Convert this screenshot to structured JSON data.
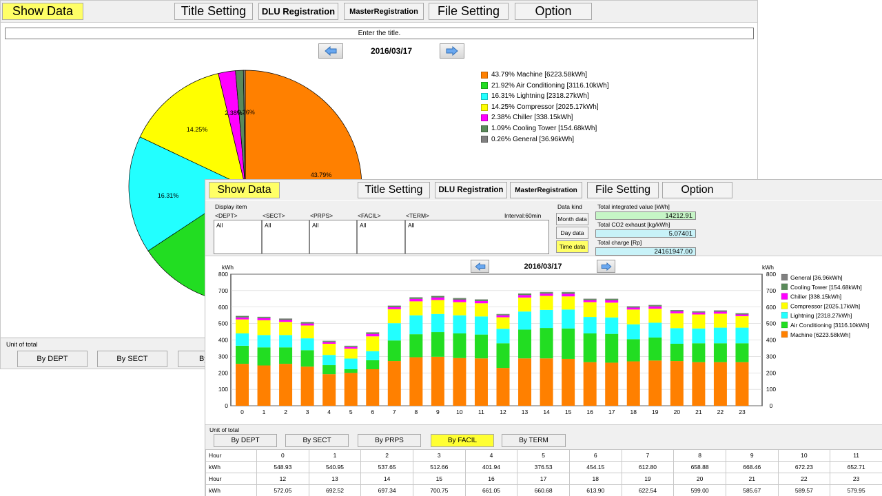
{
  "menu": {
    "show_data": "Show Data",
    "title_setting": "Title Setting",
    "dlu_registration": "DLU Registration",
    "master_registration": "MasterRegistration",
    "file_setting": "File Setting",
    "option": "Option"
  },
  "back_window": {
    "title_placeholder": "Enter the title.",
    "date": "2016/03/17",
    "legend": [
      "43.79% Machine [6223.58kWh]",
      "21.92% Air Conditioning [3116.10kWh]",
      "16.31% Lightning [2318.27kWh]",
      "14.25% Compressor [2025.17kWh]",
      "2.38% Chiller [338.15kWh]",
      "1.09% Cooling Tower [154.68kWh]",
      "0.26% General [36.96kWh]"
    ],
    "slice_labels": [
      "43.79%",
      "16.31%",
      "14.25%",
      "2.38%",
      "0.26%"
    ],
    "unit_label": "Unit of total",
    "unit_buttons": [
      "By DEPT",
      "By SECT",
      "By"
    ]
  },
  "front_window": {
    "display_item_label": "Display item",
    "columns": [
      {
        "header": "<DEPT>",
        "value": "All"
      },
      {
        "header": "<SECT>",
        "value": "All"
      },
      {
        "header": "<PRPS>",
        "value": "All"
      },
      {
        "header": "<FACIL>",
        "value": "All"
      },
      {
        "header": "<TERM>",
        "value": "All"
      }
    ],
    "interval": "Interval:60min",
    "data_kind_label": "Data kind",
    "data_kind_buttons": [
      "Month data",
      "Day data",
      "Time data"
    ],
    "active_data_kind": "Time data",
    "stats": [
      {
        "label": "Total integrated value [kWh]",
        "value": "14212.91"
      },
      {
        "label": "Total CO2 exhaust [kg/kWh]",
        "value": "5.07401"
      },
      {
        "label": "Total charge [Rp]",
        "value": "24161947.00"
      }
    ],
    "date": "2016/03/17",
    "unit_label": "Unit of total",
    "unit_buttons": [
      "By DEPT",
      "By SECT",
      "By PRPS",
      "By FACIL",
      "By TERM"
    ],
    "active_unit": "By FACIL",
    "table": {
      "hour_label": "Hour",
      "kwh_label": "kWh",
      "row1_hours": [
        "0",
        "1",
        "2",
        "3",
        "4",
        "5",
        "6",
        "7",
        "8",
        "9",
        "10",
        "11"
      ],
      "row1_kwh": [
        "548.93",
        "540.95",
        "537.65",
        "512.66",
        "401.94",
        "376.53",
        "454.15",
        "612.80",
        "658.88",
        "668.46",
        "672.23",
        "652.71"
      ],
      "row2_hours": [
        "12",
        "13",
        "14",
        "15",
        "16",
        "17",
        "18",
        "19",
        "20",
        "21",
        "22",
        "23"
      ],
      "row2_kwh": [
        "572.05",
        "692.52",
        "697.34",
        "700.75",
        "661.05",
        "660.68",
        "613.90",
        "622.54",
        "599.00",
        "585.67",
        "589.57",
        "579.95"
      ]
    }
  },
  "colors": {
    "machine": "#ff8000",
    "air_conditioning": "#22dd22",
    "lightning": "#22ffff",
    "compressor": "#ffff00",
    "chiller": "#ff00ff",
    "cooling_tower": "#5a8a5a",
    "general": "#808080",
    "active_button": "#ffff66"
  },
  "chart_data": [
    {
      "type": "pie",
      "slices": [
        {
          "name": "Machine",
          "percent": 43.79,
          "value": 6223.58,
          "color": "#ff8000"
        },
        {
          "name": "Air Conditioning",
          "percent": 21.92,
          "value": 3116.1,
          "color": "#22dd22"
        },
        {
          "name": "Lightning",
          "percent": 16.31,
          "value": 2318.27,
          "color": "#22ffff"
        },
        {
          "name": "Compressor",
          "percent": 14.25,
          "value": 2025.17,
          "color": "#ffff00"
        },
        {
          "name": "Chiller",
          "percent": 2.38,
          "value": 338.15,
          "color": "#ff00ff"
        },
        {
          "name": "Cooling Tower",
          "percent": 1.09,
          "value": 154.68,
          "color": "#5a8a5a"
        },
        {
          "name": "General",
          "percent": 0.26,
          "value": 36.96,
          "color": "#808080"
        }
      ]
    },
    {
      "type": "bar",
      "stacked": true,
      "ylabel": "kWh",
      "ylim": [
        0,
        800
      ],
      "yticks": [
        0,
        100,
        200,
        300,
        400,
        500,
        600,
        700,
        800
      ],
      "categories": [
        "0",
        "1",
        "2",
        "3",
        "4",
        "5",
        "6",
        "7",
        "8",
        "9",
        "10",
        "11",
        "12",
        "13",
        "14",
        "15",
        "16",
        "17",
        "18",
        "19",
        "20",
        "21",
        "22",
        "23"
      ],
      "legend": [
        "General [36.96kWh]",
        "Cooling Tower [154.68kWh]",
        "Chiller [338.15kWh]",
        "Compressor [2025.17kWh]",
        "Lightning [2318.27kWh]",
        "Air Conditioning [3116.10kWh]",
        "Machine [6223.58kWh]"
      ],
      "series": [
        {
          "name": "Machine",
          "color": "#ff8000",
          "values": [
            255,
            245,
            255,
            238,
            192,
            200,
            222,
            272,
            295,
            298,
            290,
            288,
            230,
            288,
            288,
            285,
            265,
            262,
            270,
            275,
            272,
            265,
            265,
            265
          ]
        },
        {
          "name": "Air Conditioning",
          "color": "#22dd22",
          "values": [
            110,
            110,
            100,
            100,
            55,
            22,
            55,
            125,
            140,
            150,
            150,
            145,
            150,
            175,
            185,
            185,
            175,
            175,
            135,
            140,
            105,
            115,
            115,
            115
          ]
        },
        {
          "name": "Lightning",
          "color": "#22ffff",
          "values": [
            75,
            75,
            75,
            72,
            62,
            65,
            55,
            105,
            115,
            110,
            110,
            110,
            88,
            110,
            110,
            115,
            100,
            100,
            90,
            90,
            95,
            90,
            95,
            95
          ]
        },
        {
          "name": "Compressor",
          "color": "#ffff00",
          "values": [
            85,
            90,
            80,
            78,
            68,
            60,
            90,
            85,
            85,
            85,
            80,
            80,
            70,
            85,
            85,
            80,
            90,
            90,
            90,
            85,
            90,
            85,
            85,
            70
          ]
        },
        {
          "name": "Chiller",
          "color": "#ff00ff",
          "values": [
            12,
            12,
            12,
            12,
            10,
            10,
            15,
            12,
            15,
            15,
            15,
            14,
            12,
            15,
            14,
            16,
            12,
            14,
            12,
            14,
            12,
            12,
            12,
            10
          ]
        },
        {
          "name": "Cooling Tower",
          "color": "#5a8a5a",
          "values": [
            8,
            7,
            7,
            7,
            6,
            6,
            8,
            8,
            8,
            8,
            8,
            8,
            6,
            8,
            8,
            9,
            7,
            8,
            6,
            7,
            6,
            6,
            6,
            6
          ]
        },
        {
          "name": "General",
          "color": "#808080",
          "values": [
            2,
            2,
            2,
            2,
            2,
            2,
            2,
            2,
            2,
            2,
            2,
            2,
            2,
            2,
            2,
            2,
            2,
            2,
            2,
            2,
            2,
            2,
            2,
            2
          ]
        }
      ]
    }
  ]
}
